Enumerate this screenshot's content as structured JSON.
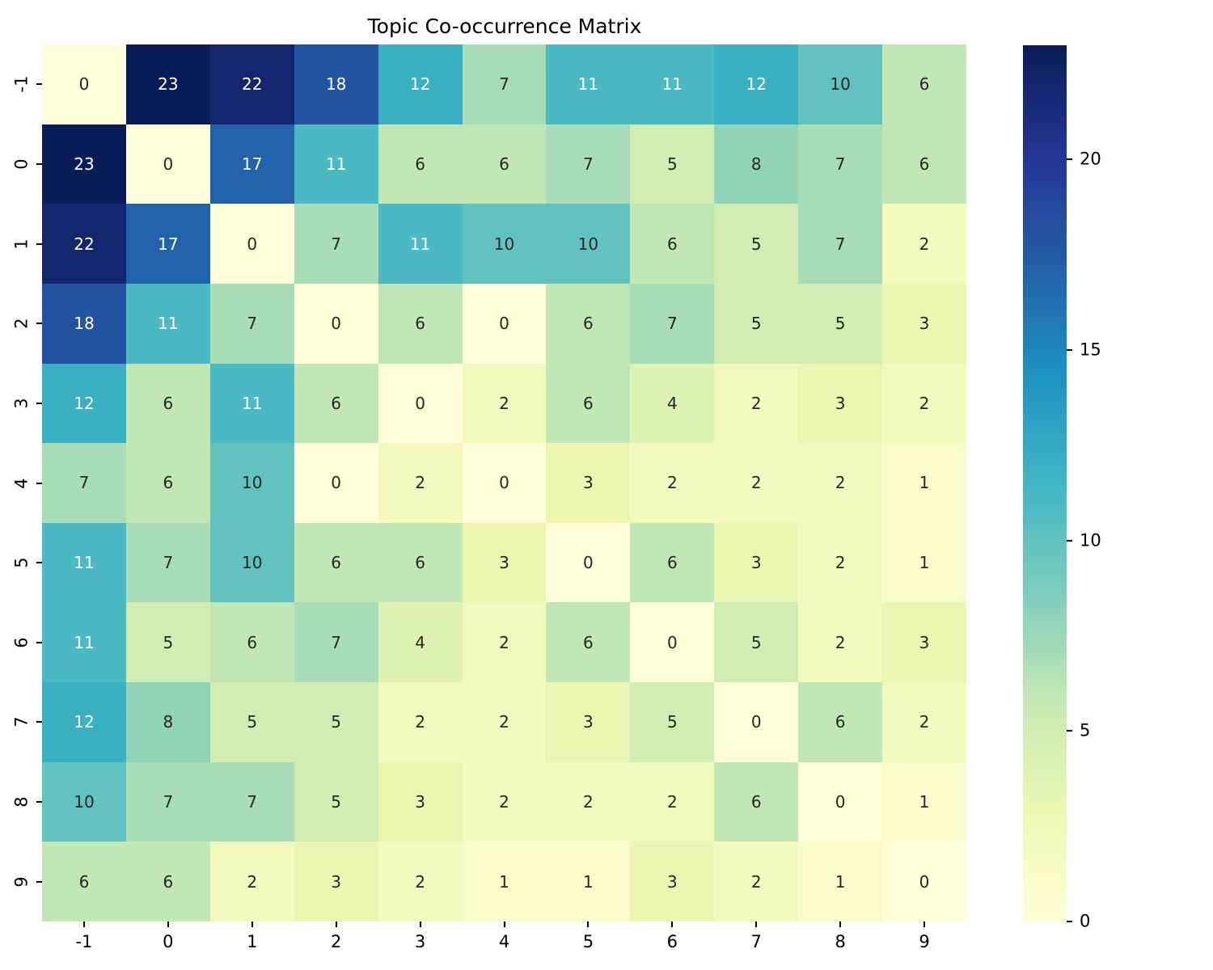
{
  "figure": {
    "background": "#ffffff"
  },
  "chart_data": {
    "type": "heatmap",
    "title": "Topic Co-occurrence Matrix",
    "x_tick_labels": [
      "-1",
      "0",
      "1",
      "2",
      "3",
      "4",
      "5",
      "6",
      "7",
      "8",
      "9"
    ],
    "y_tick_labels": [
      "-1",
      "0",
      "1",
      "2",
      "3",
      "4",
      "5",
      "6",
      "7",
      "8",
      "9"
    ],
    "matrix": [
      [
        0,
        23,
        22,
        18,
        12,
        7,
        11,
        11,
        12,
        10,
        6
      ],
      [
        23,
        0,
        17,
        11,
        6,
        6,
        7,
        5,
        8,
        7,
        6
      ],
      [
        22,
        17,
        0,
        7,
        11,
        10,
        10,
        6,
        5,
        7,
        2
      ],
      [
        18,
        11,
        7,
        0,
        6,
        0,
        6,
        7,
        5,
        5,
        3
      ],
      [
        12,
        6,
        11,
        6,
        0,
        2,
        6,
        4,
        2,
        3,
        2
      ],
      [
        7,
        6,
        10,
        0,
        2,
        0,
        3,
        2,
        2,
        2,
        1
      ],
      [
        11,
        7,
        10,
        6,
        6,
        3,
        0,
        6,
        3,
        2,
        1
      ],
      [
        11,
        5,
        6,
        7,
        4,
        2,
        6,
        0,
        5,
        2,
        3
      ],
      [
        12,
        8,
        5,
        5,
        2,
        2,
        3,
        5,
        0,
        6,
        2
      ],
      [
        10,
        7,
        7,
        5,
        3,
        2,
        2,
        2,
        6,
        0,
        1
      ],
      [
        6,
        6,
        2,
        3,
        2,
        1,
        1,
        3,
        2,
        1,
        0
      ]
    ],
    "vmin": 0,
    "vmax": 23,
    "annotated": true,
    "grid": false,
    "legend_position": "colorbar-right",
    "colormap": {
      "name": "YlGnBu",
      "stops": [
        [
          0.0,
          "#ffffd9"
        ],
        [
          0.125,
          "#edf8b1"
        ],
        [
          0.25,
          "#c7e9b4"
        ],
        [
          0.375,
          "#7fcdbb"
        ],
        [
          0.5,
          "#41b6c4"
        ],
        [
          0.625,
          "#1d91c0"
        ],
        [
          0.75,
          "#225ea8"
        ],
        [
          0.875,
          "#253494"
        ],
        [
          1.0,
          "#081d58"
        ]
      ]
    },
    "colorbar": {
      "tick_values": [
        0,
        5,
        10,
        15,
        20
      ],
      "tick_labels": [
        "0",
        "5",
        "10",
        "15",
        "20"
      ]
    },
    "annotation_text_colors": {
      "on_dark": "#ffffff",
      "on_light": "#262626"
    },
    "tick_text_color": "#000000",
    "tick_mark_color": "#000000",
    "title_color": "#000000"
  }
}
